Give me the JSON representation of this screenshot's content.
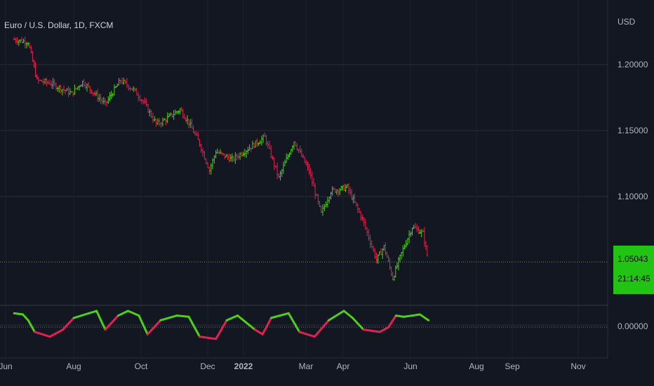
{
  "symbol_title": "Euro / U.S. Dollar, 1D, FXCM",
  "currency": "USD",
  "colors": {
    "background": "#131722",
    "grid": "#2a2e39",
    "up": "#4cd117",
    "down": "#e0234e",
    "badge": "#22c414"
  },
  "price_badge": {
    "price": "1.05043",
    "countdown": "21:14:45"
  },
  "chart_data": [
    {
      "type": "ohlc",
      "title": "Euro / U.S. Dollar, 1D, FXCM",
      "ylabel": "USD",
      "ylim": [
        1.02,
        1.235
      ],
      "y_ticks": [
        "1.20000",
        "1.15000",
        "1.10000"
      ],
      "last_price": 1.05043,
      "x_ticks": [
        "Jun",
        "Aug",
        "Oct",
        "Dec",
        "2022",
        "Mar",
        "Apr",
        "Jun",
        "Aug",
        "Sep",
        "Nov"
      ],
      "series": [
        {
          "date": "2021-05-28",
          "close": 1.219
        },
        {
          "date": "2021-06-10",
          "close": 1.217
        },
        {
          "date": "2021-06-18",
          "close": 1.188
        },
        {
          "date": "2021-06-30",
          "close": 1.186
        },
        {
          "date": "2021-07-20",
          "close": 1.178
        },
        {
          "date": "2021-07-30",
          "close": 1.187
        },
        {
          "date": "2021-08-20",
          "close": 1.17
        },
        {
          "date": "2021-09-03",
          "close": 1.188
        },
        {
          "date": "2021-09-15",
          "close": 1.181
        },
        {
          "date": "2021-09-24",
          "close": 1.172
        },
        {
          "date": "2021-10-06",
          "close": 1.155
        },
        {
          "date": "2021-10-12",
          "close": 1.157
        },
        {
          "date": "2021-10-28",
          "close": 1.166
        },
        {
          "date": "2021-11-05",
          "close": 1.156
        },
        {
          "date": "2021-11-15",
          "close": 1.14
        },
        {
          "date": "2021-11-24",
          "close": 1.12
        },
        {
          "date": "2021-11-30",
          "close": 1.134
        },
        {
          "date": "2021-12-15",
          "close": 1.128
        },
        {
          "date": "2021-12-31",
          "close": 1.137
        },
        {
          "date": "2022-01-14",
          "close": 1.145
        },
        {
          "date": "2022-01-27",
          "close": 1.114
        },
        {
          "date": "2022-02-10",
          "close": 1.142
        },
        {
          "date": "2022-02-24",
          "close": 1.119
        },
        {
          "date": "2022-03-07",
          "close": 1.087
        },
        {
          "date": "2022-03-16",
          "close": 1.104
        },
        {
          "date": "2022-03-31",
          "close": 1.107
        },
        {
          "date": "2022-04-14",
          "close": 1.083
        },
        {
          "date": "2022-04-27",
          "close": 1.052
        },
        {
          "date": "2022-05-04",
          "close": 1.062
        },
        {
          "date": "2022-05-12",
          "close": 1.038
        },
        {
          "date": "2022-05-20",
          "close": 1.057
        },
        {
          "date": "2022-05-30",
          "close": 1.077
        },
        {
          "date": "2022-06-09",
          "close": 1.072
        },
        {
          "date": "2022-06-14",
          "close": 1.05
        }
      ]
    },
    {
      "type": "line",
      "title": "",
      "ylim": [
        -0.08,
        0.1
      ],
      "y_ticks": [
        "0.00000"
      ],
      "series": [
        {
          "date": "2021-05-28",
          "value": 0.05
        },
        {
          "date": "2021-06-05",
          "value": 0.045
        },
        {
          "date": "2021-06-10",
          "value": 0.02
        },
        {
          "date": "2021-06-16",
          "value": -0.03
        },
        {
          "date": "2021-06-30",
          "value": -0.05
        },
        {
          "date": "2021-07-12",
          "value": -0.02
        },
        {
          "date": "2021-07-22",
          "value": 0.03
        },
        {
          "date": "2021-08-05",
          "value": 0.05
        },
        {
          "date": "2021-08-12",
          "value": 0.06
        },
        {
          "date": "2021-08-20",
          "value": -0.02
        },
        {
          "date": "2021-09-01",
          "value": 0.04
        },
        {
          "date": "2021-09-10",
          "value": 0.06
        },
        {
          "date": "2021-09-20",
          "value": 0.04
        },
        {
          "date": "2021-09-28",
          "value": -0.04
        },
        {
          "date": "2021-10-10",
          "value": 0.02
        },
        {
          "date": "2021-10-25",
          "value": 0.04
        },
        {
          "date": "2021-11-05",
          "value": 0.035
        },
        {
          "date": "2021-11-15",
          "value": -0.05
        },
        {
          "date": "2021-11-30",
          "value": -0.06
        },
        {
          "date": "2021-12-10",
          "value": 0.02
        },
        {
          "date": "2021-12-20",
          "value": 0.04
        },
        {
          "date": "2022-01-05",
          "value": -0.02
        },
        {
          "date": "2022-01-12",
          "value": -0.04
        },
        {
          "date": "2022-01-20",
          "value": 0.03
        },
        {
          "date": "2022-02-05",
          "value": 0.05
        },
        {
          "date": "2022-02-15",
          "value": -0.03
        },
        {
          "date": "2022-03-01",
          "value": -0.05
        },
        {
          "date": "2022-03-14",
          "value": 0.02
        },
        {
          "date": "2022-03-28",
          "value": 0.06
        },
        {
          "date": "2022-04-05",
          "value": 0.03
        },
        {
          "date": "2022-04-15",
          "value": -0.02
        },
        {
          "date": "2022-04-30",
          "value": -0.03
        },
        {
          "date": "2022-05-08",
          "value": -0.01
        },
        {
          "date": "2022-05-15",
          "value": 0.04
        },
        {
          "date": "2022-05-22",
          "value": 0.035
        },
        {
          "date": "2022-05-30",
          "value": 0.04
        },
        {
          "date": "2022-06-06",
          "value": 0.045
        },
        {
          "date": "2022-06-14",
          "value": 0.02
        }
      ]
    }
  ]
}
